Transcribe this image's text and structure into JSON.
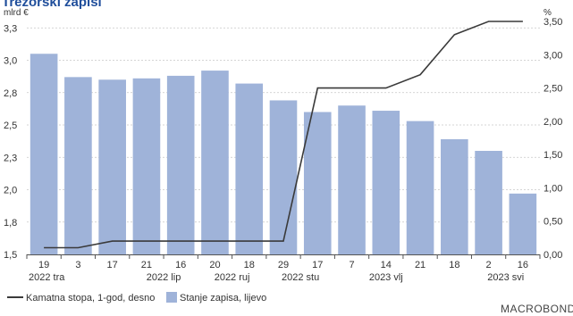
{
  "title": "Trezorski zapisi",
  "brand": "MACROBOND",
  "chart_data": {
    "type": "bar+line",
    "left_unit": "mlrd €",
    "right_unit": "%",
    "left_axis": {
      "min": 1.5,
      "max": 3.3,
      "ticks": [
        1.5,
        1.75,
        2.0,
        2.25,
        2.5,
        2.75,
        3.0,
        3.25
      ],
      "tick_labels": [
        "1,5",
        "1,8",
        "2,0",
        "2,3",
        "2,5",
        "2,8",
        "3,0",
        "3,3"
      ]
    },
    "right_axis": {
      "min": 0,
      "max": 3.5,
      "ticks": [
        0,
        0.5,
        1.0,
        1.5,
        2.0,
        2.5,
        3.0,
        3.5
      ],
      "tick_labels": [
        "0,00",
        "0,50",
        "1,00",
        "1,50",
        "2,00",
        "2,50",
        "3,00",
        "3,50"
      ]
    },
    "categories": [
      "19",
      "3",
      "17",
      "21",
      "16",
      "20",
      "18",
      "29",
      "17",
      "7",
      "14",
      "21",
      "18",
      "2",
      "16"
    ],
    "group_labels": [
      {
        "label": "2022 tra",
        "index": 0
      },
      {
        "label": "2022 lip",
        "index": 3.5
      },
      {
        "label": "2022 ruj",
        "index": 5.5
      },
      {
        "label": "2022 stu",
        "index": 7.5
      },
      {
        "label": "2023 vlj",
        "index": 10
      },
      {
        "label": "2023 svi",
        "index": 13.5
      }
    ],
    "series": [
      {
        "name": "Stanje zapisa, lijevo",
        "type": "bar",
        "axis": "left",
        "color": "#9fb3d9",
        "values": [
          3.05,
          2.87,
          2.85,
          2.86,
          2.88,
          2.92,
          2.82,
          2.69,
          2.6,
          2.65,
          2.61,
          2.53,
          2.39,
          2.3,
          1.97
        ]
      },
      {
        "name": "Kamatna stopa, 1-god, desno",
        "type": "line",
        "axis": "right",
        "color": "#3a3a3a",
        "values": [
          0.1,
          0.1,
          0.2,
          0.2,
          0.2,
          0.2,
          0.2,
          0.2,
          2.5,
          2.5,
          2.5,
          2.7,
          3.3,
          3.5,
          3.5
        ]
      }
    ],
    "grid": true,
    "legend": "bottom"
  }
}
